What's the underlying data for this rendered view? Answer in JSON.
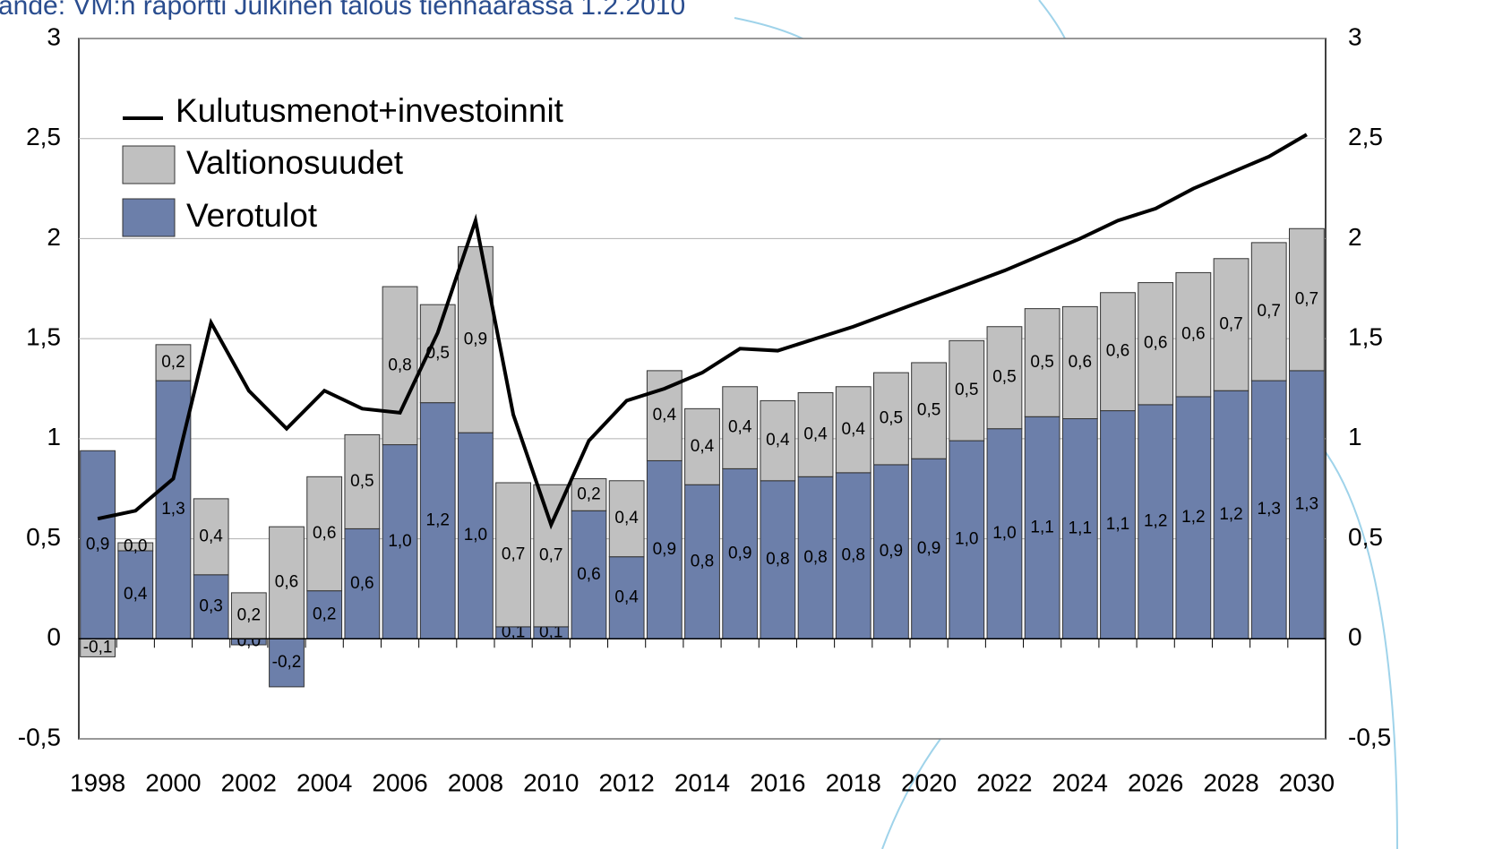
{
  "chart_data": {
    "type": "bar",
    "title": "ande: VM:n raportti Julkinen talous tienhaarassa 1.2.2010",
    "categories": [
      1998,
      null,
      2000,
      null,
      2002,
      null,
      2004,
      null,
      2006,
      null,
      2008,
      null,
      2010,
      null,
      2012,
      null,
      2014,
      null,
      2016,
      null,
      2018,
      null,
      2020,
      null,
      2022,
      null,
      2024,
      null,
      2026,
      null,
      2028,
      null,
      2030
    ],
    "ylim": [
      -0.5,
      3
    ],
    "yticks": [
      {
        "value": -0.5,
        "label": "-0,5"
      },
      0,
      {
        "value": 0.5,
        "label": "0,5"
      },
      1,
      {
        "value": 1.5,
        "label": "1,5"
      },
      2,
      {
        "value": 2.5,
        "label": "2,5"
      },
      3
    ],
    "y2lim": [
      -0.5,
      3
    ],
    "y2ticks": [
      {
        "value": -0.5,
        "label": "-0,5"
      },
      0,
      {
        "value": 0.5,
        "label": "0,5"
      },
      1,
      {
        "value": 1.5,
        "label": "1,5"
      },
      2,
      {
        "value": 2.5,
        "label": "2,5"
      },
      3
    ],
    "grid": true,
    "legend": "upper left",
    "series": [
      {
        "name": "Kulutusmenot+investoinnit",
        "type": "line",
        "color": "#000000",
        "values": [
          0.6,
          0.64,
          0.8,
          1.58,
          1.24,
          1.05,
          1.24,
          1.15,
          1.13,
          1.53,
          2.09,
          1.12,
          0.57,
          0.99,
          1.19,
          1.25,
          1.33,
          1.45,
          1.44,
          1.5,
          1.56,
          1.63,
          1.7,
          1.77,
          1.84,
          1.92,
          2.0,
          2.09,
          2.15,
          2.25,
          2.33,
          2.41,
          2.52
        ]
      },
      {
        "name": "Valtionosuudet",
        "type": "bar",
        "color": "#c0c0c0",
        "values": [
          -0.09,
          0.04,
          0.18,
          0.38,
          0.23,
          0.56,
          0.57,
          0.47,
          0.79,
          0.49,
          0.93,
          0.72,
          0.71,
          0.16,
          0.38,
          0.45,
          0.38,
          0.41,
          0.4,
          0.42,
          0.43,
          0.46,
          0.48,
          0.5,
          0.51,
          0.54,
          0.56,
          0.59,
          0.61,
          0.62,
          0.66,
          0.69,
          0.71
        ],
        "value_labels": [
          "-0,1",
          "0,0",
          "0,2",
          "0,4",
          "0,2",
          "0,6",
          "0,6",
          "0,5",
          "0,8",
          "0,5",
          "0,9",
          "0,7",
          "0,7",
          "0,2",
          "0,4",
          "0,4",
          "0,4",
          "0,4",
          "0,4",
          "0,4",
          "0,4",
          "0,5",
          "0,5",
          "0,5",
          "0,5",
          "0,5",
          "0,6",
          "0,6",
          "0,6",
          "0,6",
          "0,7",
          "0,7",
          "0,7"
        ]
      },
      {
        "name": "Verotulot",
        "type": "bar",
        "color": "#6c7faa",
        "values": [
          0.94,
          0.44,
          1.29,
          0.32,
          -0.03,
          -0.24,
          0.24,
          0.55,
          0.97,
          1.18,
          1.03,
          0.06,
          0.06,
          0.64,
          0.41,
          0.89,
          0.77,
          0.85,
          0.79,
          0.81,
          0.83,
          0.87,
          0.9,
          0.99,
          1.05,
          1.11,
          1.1,
          1.14,
          1.17,
          1.21,
          1.24,
          1.29,
          1.34
        ],
        "value_labels": [
          "0,9",
          "0,4",
          "1,3",
          "0,3",
          "0,0",
          "-0,2",
          "0,2",
          "0,6",
          "1,0",
          "1,2",
          "1,0",
          "0,1",
          "0,1",
          "0,6",
          "0,4",
          "0,9",
          "0,8",
          "0,9",
          "0,8",
          "0,8",
          "0,8",
          "0,9",
          "0,9",
          "1,0",
          "1,0",
          "1,1",
          "1,1",
          "1,1",
          "1,2",
          "1,2",
          "1,2",
          "1,3",
          "1,3"
        ]
      }
    ]
  }
}
